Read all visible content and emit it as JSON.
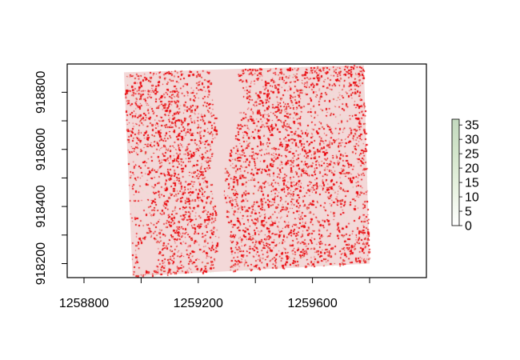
{
  "chart_data": {
    "type": "heatmap",
    "title": "",
    "xlabel": "",
    "ylabel": "",
    "xlim": [
      1258800,
      1260000
    ],
    "ylim": [
      918140,
      918900
    ],
    "x_ticks": [
      "1258800",
      "1259200",
      "1259600"
    ],
    "x_tick_values": [
      1258800,
      1259000,
      1259200,
      1259400,
      1259600,
      1259800
    ],
    "y_ticks": [
      "918200",
      "918400",
      "918600",
      "918800"
    ],
    "y_tick_values": [
      918200,
      918300,
      918400,
      918500,
      918600,
      918700,
      918800
    ],
    "raster_extent_data": {
      "corners": [
        [
          1258940,
          918870
        ],
        [
          1259780,
          918895
        ],
        [
          1259800,
          918200
        ],
        [
          1258970,
          918155
        ]
      ]
    },
    "legend": {
      "type": "colorbar",
      "min": 0,
      "max": 37,
      "tick_labels": [
        "0",
        "5",
        "10",
        "15",
        "20",
        "25",
        "30",
        "35"
      ],
      "tick_values": [
        0,
        5,
        10,
        15,
        20,
        25,
        30,
        35
      ],
      "colors": [
        "#ffffff",
        "#e9f3e2",
        "#d4e6cc",
        "#c3d9bf"
      ]
    },
    "point_color": "#e8000b",
    "background_color": "#ffffff"
  }
}
